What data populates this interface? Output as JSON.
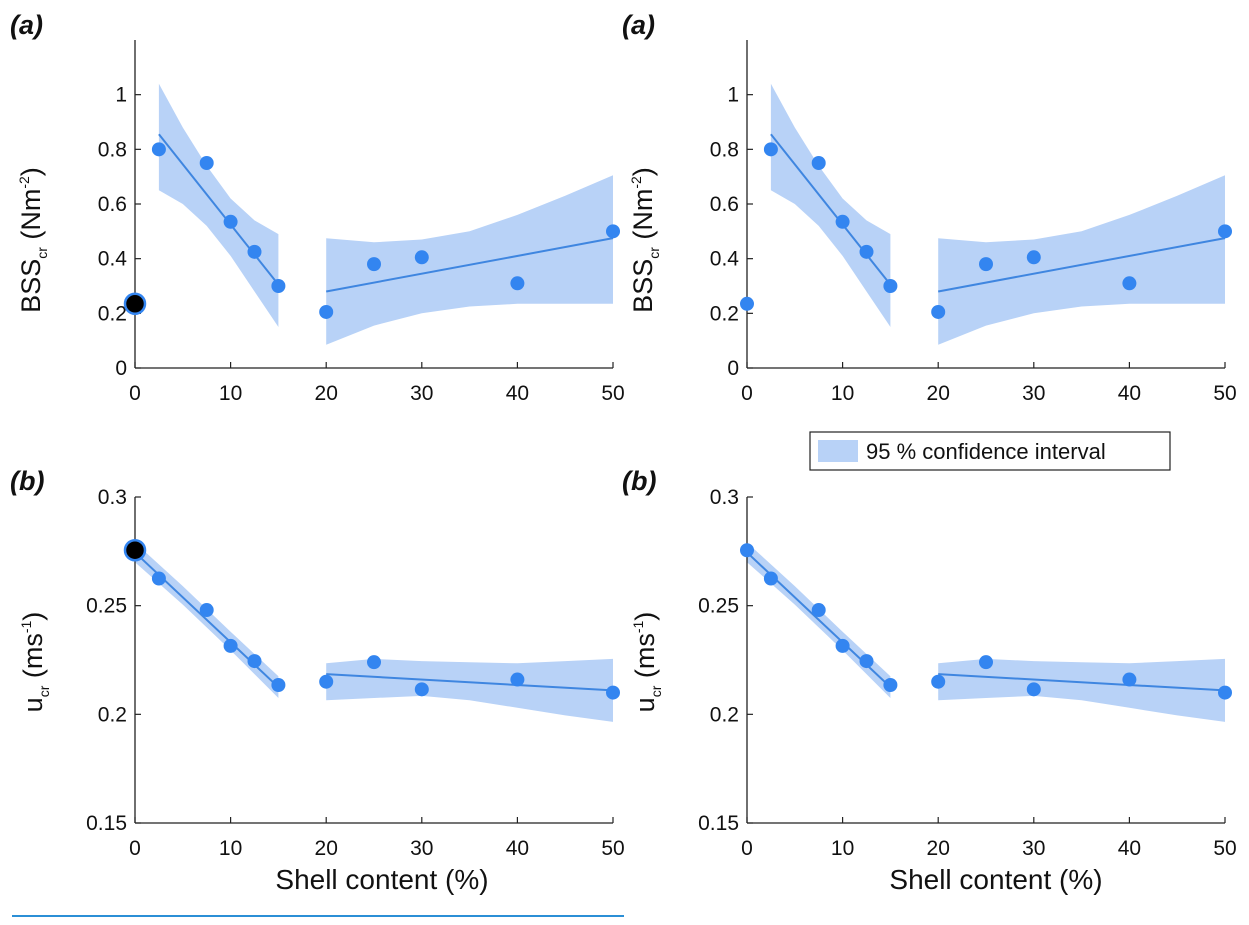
{
  "colors": {
    "point": "#3385f0",
    "fit_line": "#3f86e0",
    "ci_fill": "#b8d2f7",
    "highlight": "#000000",
    "axis": "#222222",
    "underline": "#2b8fd6"
  },
  "xlabel": "Shell content (%)",
  "legend": {
    "label": "95 % confidence interval"
  },
  "chart_data": [
    {
      "type": "scatter",
      "panel_label": "(a)",
      "ylabel_main": "BSS",
      "ylabel_sub": "cr",
      "ylabel_units": "(Nm",
      "ylabel_sup": "-2",
      "ylabel_close": ")",
      "xlim": [
        0,
        50
      ],
      "ylim": [
        0,
        1.2
      ],
      "xticks": [
        0,
        10,
        20,
        30,
        40,
        50
      ],
      "yticks": [
        0,
        0.2,
        0.4,
        0.6,
        0.8,
        1
      ],
      "ytick_labels": [
        "0",
        "0.2",
        "0.4",
        "0.6",
        "0.8",
        "1"
      ],
      "points": {
        "x": [
          0,
          2.5,
          7.5,
          10,
          12.5,
          15,
          20,
          25,
          30,
          40,
          50
        ],
        "y": [
          0.235,
          0.8,
          0.75,
          0.535,
          0.425,
          0.3,
          0.205,
          0.38,
          0.405,
          0.31,
          0.5
        ]
      },
      "highlight_point": {
        "x": 0,
        "y": 0.235
      },
      "fits": [
        {
          "x": [
            2.5,
            15
          ],
          "y": [
            0.855,
            0.305
          ],
          "ci_upper": [
            [
              2.5,
              1.04
            ],
            [
              5,
              0.88
            ],
            [
              7.5,
              0.74
            ],
            [
              10,
              0.62
            ],
            [
              12.5,
              0.54
            ],
            [
              15,
              0.49
            ]
          ],
          "ci_lower": [
            [
              2.5,
              0.65
            ],
            [
              5,
              0.6
            ],
            [
              7.5,
              0.52
            ],
            [
              10,
              0.41
            ],
            [
              12.5,
              0.28
            ],
            [
              15,
              0.15
            ]
          ]
        },
        {
          "x": [
            20,
            50
          ],
          "y": [
            0.28,
            0.475
          ],
          "ci_upper": [
            [
              20,
              0.475
            ],
            [
              25,
              0.46
            ],
            [
              30,
              0.47
            ],
            [
              35,
              0.5
            ],
            [
              40,
              0.56
            ],
            [
              45,
              0.63
            ],
            [
              50,
              0.705
            ]
          ],
          "ci_lower": [
            [
              20,
              0.085
            ],
            [
              25,
              0.155
            ],
            [
              30,
              0.2
            ],
            [
              35,
              0.225
            ],
            [
              40,
              0.235
            ],
            [
              45,
              0.235
            ],
            [
              50,
              0.235
            ]
          ]
        }
      ]
    },
    {
      "type": "scatter",
      "panel_label": "(a)",
      "ylabel_main": "BSS",
      "ylabel_sub": "cr",
      "ylabel_units": "(Nm",
      "ylabel_sup": "-2",
      "ylabel_close": ")",
      "xlim": [
        0,
        50
      ],
      "ylim": [
        0,
        1.2
      ],
      "xticks": [
        0,
        10,
        20,
        30,
        40,
        50
      ],
      "yticks": [
        0,
        0.2,
        0.4,
        0.6,
        0.8,
        1
      ],
      "ytick_labels": [
        "0",
        "0.2",
        "0.4",
        "0.6",
        "0.8",
        "1"
      ],
      "points": {
        "x": [
          0,
          2.5,
          7.5,
          10,
          12.5,
          15,
          20,
          25,
          30,
          40,
          50
        ],
        "y": [
          0.235,
          0.8,
          0.75,
          0.535,
          0.425,
          0.3,
          0.205,
          0.38,
          0.405,
          0.31,
          0.5
        ]
      },
      "highlight_point": null,
      "fits": [
        {
          "x": [
            2.5,
            15
          ],
          "y": [
            0.855,
            0.305
          ],
          "ci_upper": [
            [
              2.5,
              1.04
            ],
            [
              5,
              0.88
            ],
            [
              7.5,
              0.74
            ],
            [
              10,
              0.62
            ],
            [
              12.5,
              0.54
            ],
            [
              15,
              0.49
            ]
          ],
          "ci_lower": [
            [
              2.5,
              0.65
            ],
            [
              5,
              0.6
            ],
            [
              7.5,
              0.52
            ],
            [
              10,
              0.41
            ],
            [
              12.5,
              0.28
            ],
            [
              15,
              0.15
            ]
          ]
        },
        {
          "x": [
            20,
            50
          ],
          "y": [
            0.28,
            0.475
          ],
          "ci_upper": [
            [
              20,
              0.475
            ],
            [
              25,
              0.46
            ],
            [
              30,
              0.47
            ],
            [
              35,
              0.5
            ],
            [
              40,
              0.56
            ],
            [
              45,
              0.63
            ],
            [
              50,
              0.705
            ]
          ],
          "ci_lower": [
            [
              20,
              0.085
            ],
            [
              25,
              0.155
            ],
            [
              30,
              0.2
            ],
            [
              35,
              0.225
            ],
            [
              40,
              0.235
            ],
            [
              45,
              0.235
            ],
            [
              50,
              0.235
            ]
          ]
        }
      ]
    },
    {
      "type": "scatter",
      "panel_label": "(b)",
      "ylabel_main": "u",
      "ylabel_sub": "cr",
      "ylabel_units": "(ms",
      "ylabel_sup": "-1",
      "ylabel_close": ")",
      "xlim": [
        0,
        50
      ],
      "ylim": [
        0.15,
        0.3
      ],
      "xticks": [
        0,
        10,
        20,
        30,
        40,
        50
      ],
      "yticks": [
        0.15,
        0.2,
        0.25,
        0.3
      ],
      "ytick_labels": [
        "0.15",
        "0.2",
        "0.25",
        "0.3"
      ],
      "points": {
        "x": [
          0,
          2.5,
          7.5,
          10,
          12.5,
          15,
          20,
          25,
          30,
          40,
          50
        ],
        "y": [
          0.2755,
          0.2625,
          0.248,
          0.2315,
          0.2245,
          0.2135,
          0.215,
          0.224,
          0.2115,
          0.216,
          0.21
        ]
      },
      "highlight_point": {
        "x": 0,
        "y": 0.2755
      },
      "fits": [
        {
          "x": [
            0,
            15
          ],
          "y": [
            0.2745,
            0.2125
          ],
          "ci_upper": [
            [
              0,
              0.279
            ],
            [
              5,
              0.259
            ],
            [
              10,
              0.238
            ],
            [
              15,
              0.2175
            ]
          ],
          "ci_lower": [
            [
              0,
              0.27
            ],
            [
              5,
              0.2505
            ],
            [
              10,
              0.2295
            ],
            [
              15,
              0.2075
            ]
          ]
        },
        {
          "x": [
            20,
            50
          ],
          "y": [
            0.2185,
            0.211
          ],
          "ci_upper": [
            [
              20,
              0.2235
            ],
            [
              25,
              0.2255
            ],
            [
              30,
              0.2245
            ],
            [
              35,
              0.224
            ],
            [
              40,
              0.2235
            ],
            [
              45,
              0.2245
            ],
            [
              50,
              0.2255
            ]
          ],
          "ci_lower": [
            [
              20,
              0.2065
            ],
            [
              25,
              0.2075
            ],
            [
              30,
              0.2085
            ],
            [
              35,
              0.2065
            ],
            [
              40,
              0.203
            ],
            [
              45,
              0.1995
            ],
            [
              50,
              0.1965
            ]
          ]
        }
      ]
    },
    {
      "type": "scatter",
      "panel_label": "(b)",
      "ylabel_main": "u",
      "ylabel_sub": "cr",
      "ylabel_units": "(ms",
      "ylabel_sup": "-1",
      "ylabel_close": ")",
      "xlim": [
        0,
        50
      ],
      "ylim": [
        0.15,
        0.3
      ],
      "xticks": [
        0,
        10,
        20,
        30,
        40,
        50
      ],
      "yticks": [
        0.15,
        0.2,
        0.25,
        0.3
      ],
      "ytick_labels": [
        "0.15",
        "0.2",
        "0.25",
        "0.3"
      ],
      "points": {
        "x": [
          0,
          2.5,
          7.5,
          10,
          12.5,
          15,
          20,
          25,
          30,
          40,
          50
        ],
        "y": [
          0.2755,
          0.2625,
          0.248,
          0.2315,
          0.2245,
          0.2135,
          0.215,
          0.224,
          0.2115,
          0.216,
          0.21
        ]
      },
      "highlight_point": null,
      "fits": [
        {
          "x": [
            0,
            15
          ],
          "y": [
            0.2745,
            0.2125
          ],
          "ci_upper": [
            [
              0,
              0.279
            ],
            [
              5,
              0.259
            ],
            [
              10,
              0.238
            ],
            [
              15,
              0.2175
            ]
          ],
          "ci_lower": [
            [
              0,
              0.27
            ],
            [
              5,
              0.2505
            ],
            [
              10,
              0.2295
            ],
            [
              15,
              0.2075
            ]
          ]
        },
        {
          "x": [
            20,
            50
          ],
          "y": [
            0.2185,
            0.211
          ],
          "ci_upper": [
            [
              20,
              0.2235
            ],
            [
              25,
              0.2255
            ],
            [
              30,
              0.2245
            ],
            [
              35,
              0.224
            ],
            [
              40,
              0.2235
            ],
            [
              45,
              0.2245
            ],
            [
              50,
              0.2255
            ]
          ],
          "ci_lower": [
            [
              20,
              0.2065
            ],
            [
              25,
              0.2075
            ],
            [
              30,
              0.2085
            ],
            [
              35,
              0.2065
            ],
            [
              40,
              0.203
            ],
            [
              45,
              0.1995
            ],
            [
              50,
              0.1965
            ]
          ]
        }
      ]
    }
  ]
}
